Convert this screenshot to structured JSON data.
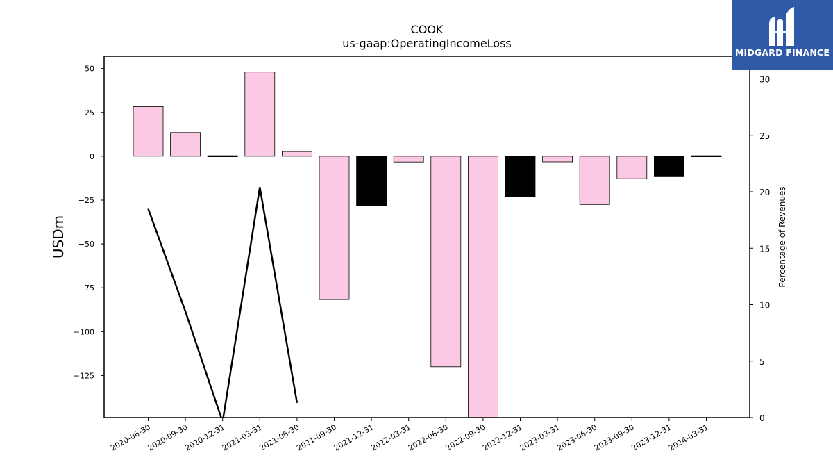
{
  "chart_data": {
    "type": "bar",
    "title": "COOK",
    "subtitle": "us-gaap:OperatingIncomeLoss",
    "ylabel": "USDm",
    "y2label": "Percentage of Revenues",
    "ylim": [
      -149,
      57
    ],
    "y2lim": [
      0,
      32
    ],
    "yticks": [
      50,
      25,
      0,
      -25,
      -50,
      -75,
      -100,
      -125
    ],
    "yticklabels": [
      "50",
      "25",
      "0",
      "−25",
      "−50",
      "−75",
      "−100",
      "−125"
    ],
    "y2ticks": [
      0,
      5,
      10,
      15,
      20,
      25,
      30
    ],
    "y2ticklabels": [
      "0",
      "5",
      "10",
      "15",
      "20",
      "25",
      "30"
    ],
    "categories": [
      "2020-06-30",
      "2020-09-30",
      "2020-12-31",
      "2021-03-31",
      "2021-06-30",
      "2021-09-30",
      "2021-12-31",
      "2022-03-31",
      "2022-06-30",
      "2022-09-30",
      "2022-12-31",
      "2023-03-31",
      "2023-06-30",
      "2023-09-30",
      "2023-12-31",
      "2024-03-31"
    ],
    "series": [
      {
        "values": [
          28.3,
          13.5,
          -0.5,
          48.0,
          2.7,
          -81.7,
          -28.0,
          -3.3,
          -120.0,
          -155.0,
          -23.2,
          -3.2,
          -27.5,
          -12.8,
          -11.7,
          -0.2
        ]
      },
      {
        "type": "line",
        "axis": "right",
        "values": [
          18.5,
          9.4,
          -0.5,
          20.4,
          1.3,
          null,
          null,
          null,
          null,
          null,
          null,
          null,
          null,
          null,
          null,
          null
        ]
      }
    ],
    "colors": {
      "bar_pink": "#fcc9e4",
      "bar_black": "#000000",
      "line": "#000000",
      "logo_bg": "#2f5aa8"
    },
    "bar_colors": [
      "pink",
      "pink",
      "black",
      "pink",
      "pink",
      "pink",
      "black",
      "pink",
      "pink",
      "pink",
      "black",
      "pink",
      "pink",
      "pink",
      "black",
      "black"
    ]
  },
  "logo": {
    "text": "MIDGARD FINANCE"
  }
}
